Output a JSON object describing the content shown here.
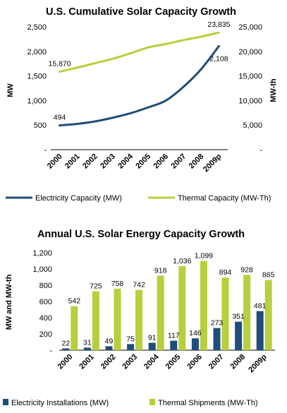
{
  "chart_data": [
    {
      "type": "line",
      "title": "U.S. Cumulative Solar Capacity Growth",
      "xlabel": "",
      "ylabel_left": "MW",
      "ylabel_right": "MW-th",
      "categories": [
        "2000",
        "2001",
        "2002",
        "2003",
        "2004",
        "2005",
        "2006",
        "2007",
        "2008",
        "2009p"
      ],
      "left_axis": {
        "ylim": [
          0,
          2500
        ],
        "ticks": [
          "-",
          "500",
          "1,000",
          "1,500",
          "2,000",
          "2,500"
        ]
      },
      "right_axis": {
        "ylim": [
          0,
          25000
        ],
        "ticks": [
          "-",
          "5,000",
          "10,000",
          "15,000",
          "20,000",
          "25,000"
        ]
      },
      "series": [
        {
          "name": "Electricity Capacity (MW)",
          "axis": "left",
          "color": "#1f4e79",
          "values": [
            494,
            525,
            575,
            650,
            740,
            860,
            1000,
            1280,
            1640,
            2108
          ]
        },
        {
          "name": "Thermal Capacity (MW-Th)",
          "axis": "right",
          "color": "#b7cf3c",
          "values": [
            15870,
            16700,
            17600,
            18500,
            19600,
            20800,
            21500,
            22300,
            23000,
            23835
          ]
        }
      ],
      "data_labels": [
        {
          "series": 0,
          "index": 0,
          "text": "494"
        },
        {
          "series": 0,
          "index": 9,
          "text": "2,108"
        },
        {
          "series": 1,
          "index": 0,
          "text": "15,870"
        },
        {
          "series": 1,
          "index": 9,
          "text": "23,835"
        }
      ],
      "grid": false,
      "legend": "bottom"
    },
    {
      "type": "bar",
      "title": "Annual U.S. Solar Energy Capacity Growth",
      "xlabel": "",
      "ylabel": "MW and MW-th",
      "categories": [
        "2000",
        "2001",
        "2002",
        "2003",
        "2004",
        "2005",
        "2006",
        "2007",
        "2008",
        "2009p"
      ],
      "ylim": [
        0,
        1200
      ],
      "ticks": [
        "-",
        "200",
        "400",
        "600",
        "800",
        "1,000",
        "1,200"
      ],
      "series": [
        {
          "name": "Electricity Installations (MW)",
          "color": "#1f4e79",
          "values": [
            22,
            31,
            49,
            75,
            91,
            117,
            146,
            273,
            351,
            481
          ],
          "labels": [
            "22",
            "31",
            "49",
            "75",
            "91",
            "117",
            "146",
            "273",
            "351",
            "481"
          ]
        },
        {
          "name": "Thermal Shipments (MW-Th)",
          "color": "#b7cf3c",
          "values": [
            542,
            725,
            758,
            742,
            918,
            1036,
            1099,
            894,
            928,
            865
          ],
          "labels": [
            "542",
            "725",
            "758",
            "742",
            "918",
            "1,036",
            "1,099",
            "894",
            "928",
            "865"
          ]
        }
      ],
      "grid": false,
      "legend": "bottom"
    }
  ]
}
